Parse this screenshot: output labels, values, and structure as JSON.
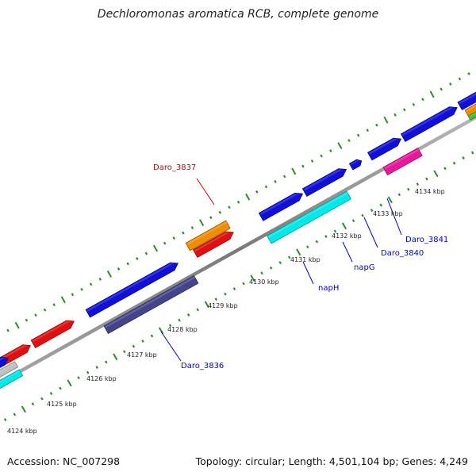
{
  "title": "Dechloromonas aromatica RCB, complete genome",
  "footer": {
    "accession": "Accession: NC_007298",
    "summary": "Topology: circular; Length: 4,501,104 bp; Genes: 4,249"
  },
  "colors": {
    "backbone": "#8c8c8c",
    "dots": "#2e8b2e",
    "blue": "#1010d8",
    "red": "#e01010",
    "orange": "#f08c00",
    "cyan": "#00e8e8",
    "slate": "#44448c",
    "magenta": "#e8189c",
    "green": "#40c040",
    "gray": "#c0c0c0",
    "label_red": "#cc0000",
    "label_blue": "#0000cc"
  },
  "ticks": [
    {
      "label": "4124 kbp"
    },
    {
      "label": "4125 kbp"
    },
    {
      "label": "4126 kbp"
    },
    {
      "label": "4127 kbp"
    },
    {
      "label": "4128 kbp"
    },
    {
      "label": "4129 kbp"
    },
    {
      "label": "4130 kbp"
    },
    {
      "label": "4131 kbp"
    },
    {
      "label": "4132 kbp"
    },
    {
      "label": "4133 kbp"
    },
    {
      "label": "4134 kbp"
    }
  ],
  "gene_labels": [
    {
      "text": "Daro_3837",
      "color": "red"
    },
    {
      "text": "Daro_3836",
      "color": "blue"
    },
    {
      "text": "napH",
      "color": "blue"
    },
    {
      "text": "napG",
      "color": "blue"
    },
    {
      "text": "Daro_3840",
      "color": "blue"
    },
    {
      "text": "Daro_3841",
      "color": "blue"
    }
  ]
}
